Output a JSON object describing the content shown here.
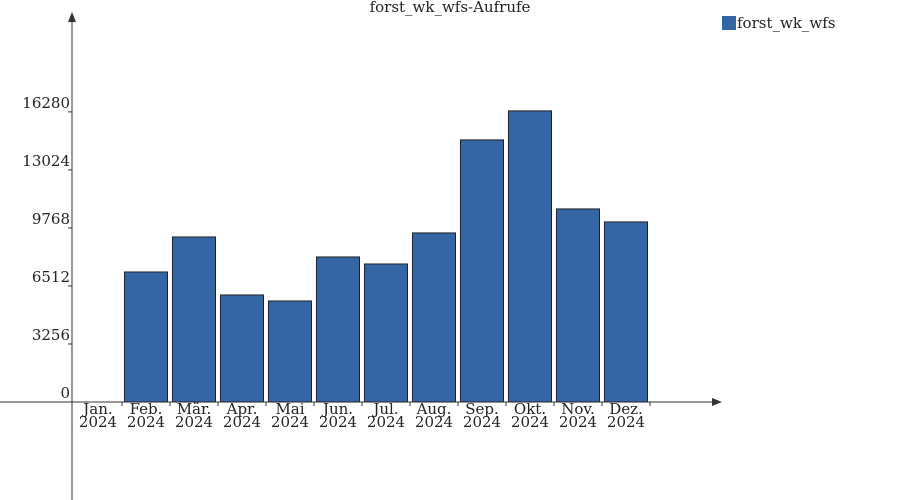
{
  "chart_data": {
    "type": "bar",
    "title": "forst_wk_wfs-Aufrufe",
    "categories": [
      [
        "Jan.",
        "2024"
      ],
      [
        "Feb.",
        "2024"
      ],
      [
        "Mär.",
        "2024"
      ],
      [
        "Apr.",
        "2024"
      ],
      [
        "Mai",
        "2024"
      ],
      [
        "Jun.",
        "2024"
      ],
      [
        "Jul.",
        "2024"
      ],
      [
        "Aug.",
        "2024"
      ],
      [
        "Sep.",
        "2024"
      ],
      [
        "Okt.",
        "2024"
      ],
      [
        "Nov.",
        "2024"
      ],
      [
        "Dez.",
        "2024"
      ]
    ],
    "series": [
      {
        "name": "forst_wk_wfs",
        "color": "#3465a4",
        "values": [
          0,
          7298,
          9263,
          6007,
          5670,
          8140,
          7747,
          9488,
          14709,
          16337,
          10835,
          10105
        ]
      }
    ],
    "ylim": [
      -5500,
      21550
    ],
    "yticks": [
      0,
      3256,
      6512,
      9768,
      13024,
      16280
    ],
    "legend": "top-right"
  }
}
